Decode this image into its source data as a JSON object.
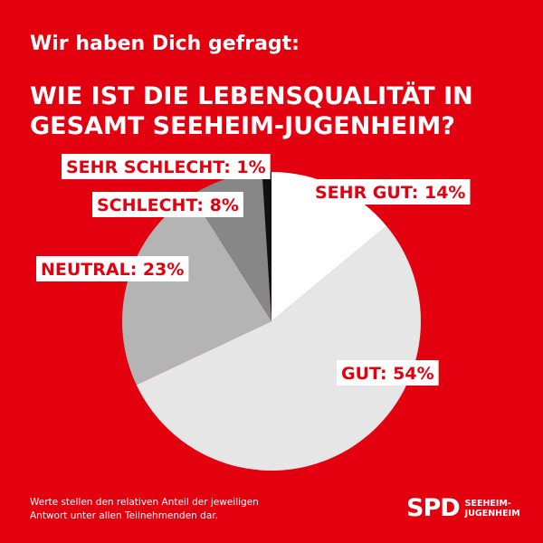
{
  "header": {
    "intro": "Wir haben Dich gefragt:",
    "question_line1": "WIE IST DIE LEBENSQUALITÄT IN",
    "question_line2": "GESAMT SEEHEIM-JUGENHEIM?"
  },
  "footnote": {
    "line1": "Werte stellen den relativen Anteil der jeweiligen",
    "line2": "Antwort unter allen Teilnehmenden dar."
  },
  "logo": {
    "text": "SPD",
    "sub_line1": "SEEHEIM-",
    "sub_line2": "JUGENHEIM"
  },
  "colors": {
    "background": "#e3000f",
    "label_text": "#e3000f",
    "label_box": "#ffffff"
  },
  "chart_data": {
    "type": "pie",
    "start": "12 o'clock, clockwise",
    "slices": [
      {
        "category": "SEHR GUT",
        "value": 14,
        "label": "SEHR GUT: 14%",
        "color": "#ffffff"
      },
      {
        "category": "GUT",
        "value": 54,
        "label": "GUT: 54%",
        "color": "#e6e6e6"
      },
      {
        "category": "NEUTRAL",
        "value": 23,
        "label": "NEUTRAL: 23%",
        "color": "#b4b4b4"
      },
      {
        "category": "SCHLECHT",
        "value": 8,
        "label": "SCHLECHT: 8%",
        "color": "#878787"
      },
      {
        "category": "SEHR SCHLECHT",
        "value": 1,
        "label": "SEHR SCHLECHT: 1%",
        "color": "#111111"
      }
    ]
  }
}
